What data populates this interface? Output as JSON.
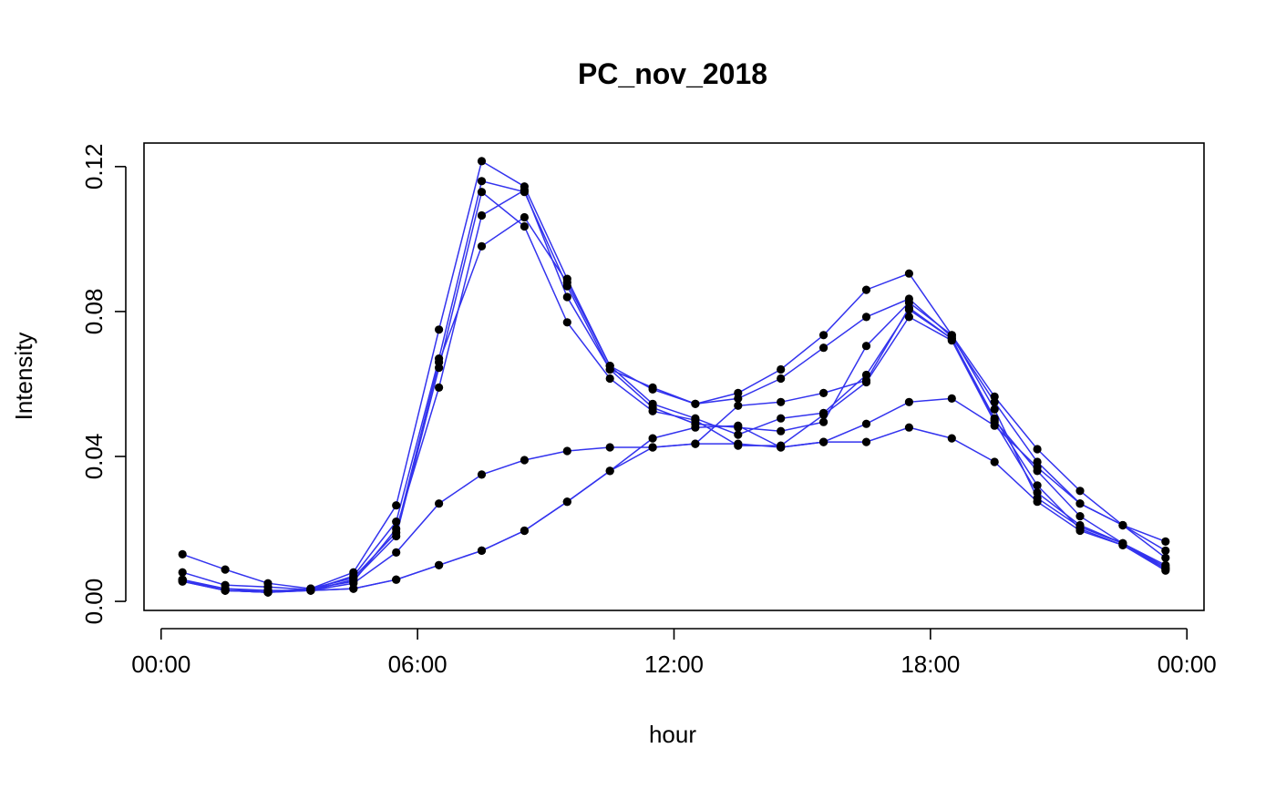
{
  "chart_data": {
    "type": "line",
    "title": "PC_nov_2018",
    "xlabel": "hour",
    "ylabel": "Intensity",
    "x_ticks": [
      "00:00",
      "06:00",
      "12:00",
      "18:00",
      "00:00"
    ],
    "y_ticks": [
      "0.00",
      "0.04",
      "0.08",
      "0.12"
    ],
    "x_tick_hours": [
      0,
      6,
      12,
      18,
      24
    ],
    "y_tick_values": [
      0.0,
      0.04,
      0.08,
      0.12
    ],
    "xlim_hours": [
      -0.4,
      24.4
    ],
    "ylim": [
      -0.0025,
      0.1265
    ],
    "legend": "none",
    "grid": false,
    "line_color": "#3333ee",
    "point_color": "#000000",
    "x_hours": [
      0.5,
      1.5,
      2.5,
      3.5,
      4.5,
      5.5,
      6.5,
      7.5,
      8.5,
      9.5,
      10.5,
      11.5,
      12.5,
      13.5,
      14.5,
      15.5,
      16.5,
      17.5,
      18.5,
      19.5,
      20.5,
      21.5,
      22.5,
      23.5
    ],
    "series": [
      {
        "values": [
          0.013,
          0.0088,
          0.005,
          0.0035,
          0.008,
          0.0265,
          0.075,
          0.1215,
          0.1145,
          0.089,
          0.065,
          0.0585,
          0.0545,
          0.0575,
          0.064,
          0.0735,
          0.086,
          0.0905,
          0.0735,
          0.0565,
          0.042,
          0.0305,
          0.021,
          0.0165
        ]
      },
      {
        "values": [
          0.008,
          0.0045,
          0.004,
          0.0032,
          0.007,
          0.022,
          0.067,
          0.116,
          0.113,
          0.087,
          0.064,
          0.059,
          0.0545,
          0.056,
          0.0615,
          0.07,
          0.0785,
          0.0835,
          0.073,
          0.055,
          0.0385,
          0.027,
          0.021,
          0.014
        ]
      },
      {
        "values": [
          0.006,
          0.0035,
          0.003,
          0.003,
          0.006,
          0.018,
          0.0645,
          0.113,
          0.1035,
          0.077,
          0.0615,
          0.0525,
          0.05,
          0.043,
          0.043,
          0.0515,
          0.0605,
          0.0785,
          0.072,
          0.0495,
          0.03,
          0.021,
          0.016,
          0.0095
        ]
      },
      {
        "values": [
          0.0055,
          0.003,
          0.0025,
          0.0035,
          0.0055,
          0.02,
          0.059,
          0.1065,
          0.1135,
          0.084,
          0.064,
          0.0535,
          0.049,
          0.048,
          0.047,
          0.0495,
          0.0705,
          0.0825,
          0.0735,
          0.053,
          0.0285,
          0.0205,
          0.016,
          0.009
        ]
      },
      {
        "values": [
          0.006,
          0.003,
          0.0025,
          0.0035,
          0.0065,
          0.019,
          0.066,
          0.098,
          0.106,
          0.088,
          0.065,
          0.0545,
          0.0505,
          0.046,
          0.0505,
          0.052,
          0.0625,
          0.0805,
          0.0725,
          0.0505,
          0.032,
          0.02,
          0.0155,
          0.009
        ]
      },
      {
        "values": [
          0.006,
          0.003,
          0.003,
          0.003,
          0.005,
          0.0135,
          0.027,
          0.035,
          0.039,
          0.0415,
          0.0425,
          0.0425,
          0.0435,
          0.054,
          0.055,
          0.0575,
          0.061,
          0.081,
          0.0725,
          0.05,
          0.036,
          0.0235,
          0.016,
          0.01
        ]
      },
      {
        "values": [
          0.0055,
          0.003,
          0.0025,
          0.003,
          0.0035,
          0.006,
          0.01,
          0.014,
          0.0195,
          0.0275,
          0.036,
          0.045,
          0.048,
          0.0485,
          0.0425,
          0.044,
          0.049,
          0.055,
          0.056,
          0.0485,
          0.037,
          0.027,
          0.021,
          0.012
        ]
      },
      {
        "values": [
          0.006,
          0.003,
          0.0025,
          0.003,
          0.0035,
          0.006,
          0.01,
          0.014,
          0.0195,
          0.0275,
          0.036,
          0.0425,
          0.0435,
          0.0435,
          0.0425,
          0.044,
          0.044,
          0.048,
          0.045,
          0.0385,
          0.0275,
          0.0195,
          0.0155,
          0.0085
        ]
      }
    ]
  }
}
